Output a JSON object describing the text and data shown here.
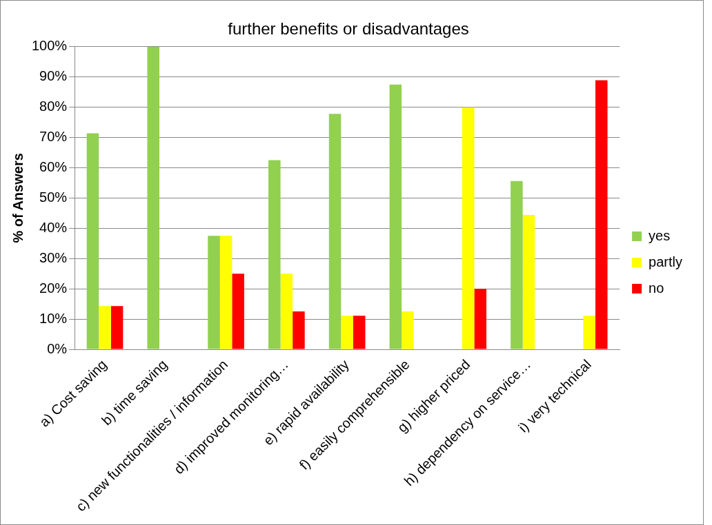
{
  "chart_data": {
    "type": "bar",
    "title": "further benefits or disadvantages",
    "ylabel": "% of Answers",
    "categories": [
      "a) Cost saving",
      "b) time saving",
      "c) new functionalities / information",
      "d) improved monitoring…",
      "e) rapid availability",
      "f) easily comprehensible",
      "g) higher priced",
      "h) dependency on service…",
      "i) very technical"
    ],
    "series": [
      {
        "name": "yes",
        "color": "#92d050",
        "values": [
          71.4,
          100,
          37.5,
          62.5,
          77.8,
          87.5,
          0,
          55.6,
          0
        ]
      },
      {
        "name": "partly",
        "color": "#ffff00",
        "values": [
          14.3,
          0,
          37.5,
          25,
          11.1,
          12.5,
          80,
          44.4,
          11.1
        ]
      },
      {
        "name": "no",
        "color": "#ff0000",
        "values": [
          14.3,
          0,
          25,
          12.5,
          11.1,
          0,
          20,
          0,
          88.9
        ]
      }
    ],
    "ylim": [
      0,
      100
    ],
    "yticks": [
      {
        "value": 0,
        "label": "0%"
      },
      {
        "value": 10,
        "label": "10%"
      },
      {
        "value": 20,
        "label": "20%"
      },
      {
        "value": 30,
        "label": "30%"
      },
      {
        "value": 40,
        "label": "40%"
      },
      {
        "value": 50,
        "label": "50%"
      },
      {
        "value": 60,
        "label": "60%"
      },
      {
        "value": 70,
        "label": "70%"
      },
      {
        "value": 80,
        "label": "80%"
      },
      {
        "value": 90,
        "label": "90%"
      },
      {
        "value": 100,
        "label": "100%"
      }
    ],
    "grid": "y",
    "legend": "right"
  }
}
